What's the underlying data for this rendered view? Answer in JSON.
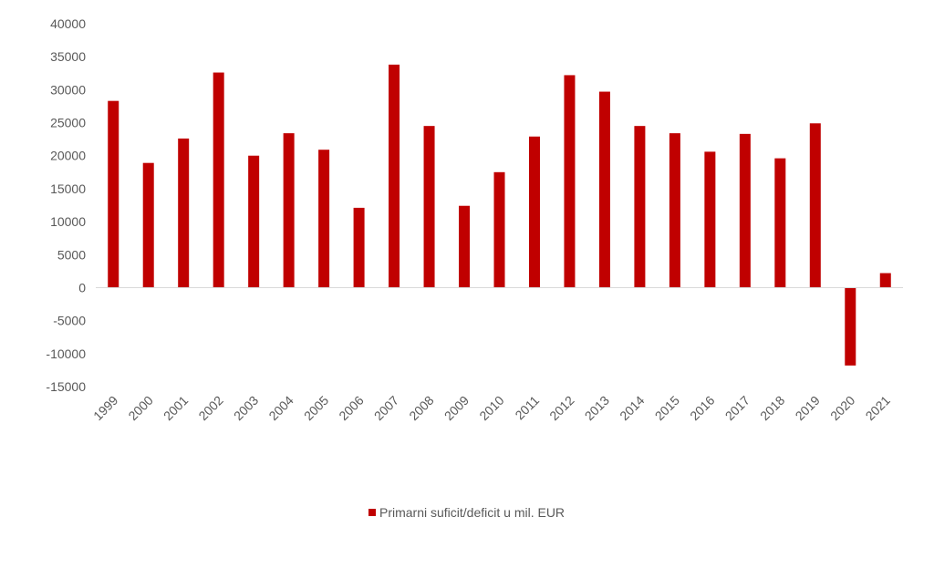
{
  "chart_data": {
    "type": "bar",
    "categories": [
      "1999",
      "2000",
      "2001",
      "2002",
      "2003",
      "2004",
      "2005",
      "2006",
      "2007",
      "2008",
      "2009",
      "2010",
      "2011",
      "2012",
      "2013",
      "2014",
      "2015",
      "2016",
      "2017",
      "2018",
      "2019",
      "2020",
      "2021"
    ],
    "series": [
      {
        "name": "Primarni suficit/deficit u mil. EUR",
        "values": [
          28300,
          18900,
          22600,
          32600,
          20000,
          23400,
          20900,
          12100,
          33800,
          24500,
          12400,
          17500,
          22900,
          32200,
          29700,
          24500,
          23400,
          20600,
          23300,
          19600,
          24900,
          -11800,
          2200
        ],
        "color": "#c00000"
      }
    ],
    "yticks": [
      "40000",
      "35000",
      "30000",
      "25000",
      "20000",
      "15000",
      "10000",
      "5000",
      "0",
      "-5000",
      "-10000",
      "-15000"
    ],
    "ylim": [
      -15000,
      40000
    ],
    "grid": false,
    "legend_position": "bottom",
    "title": "",
    "xlabel": "",
    "ylabel": ""
  }
}
